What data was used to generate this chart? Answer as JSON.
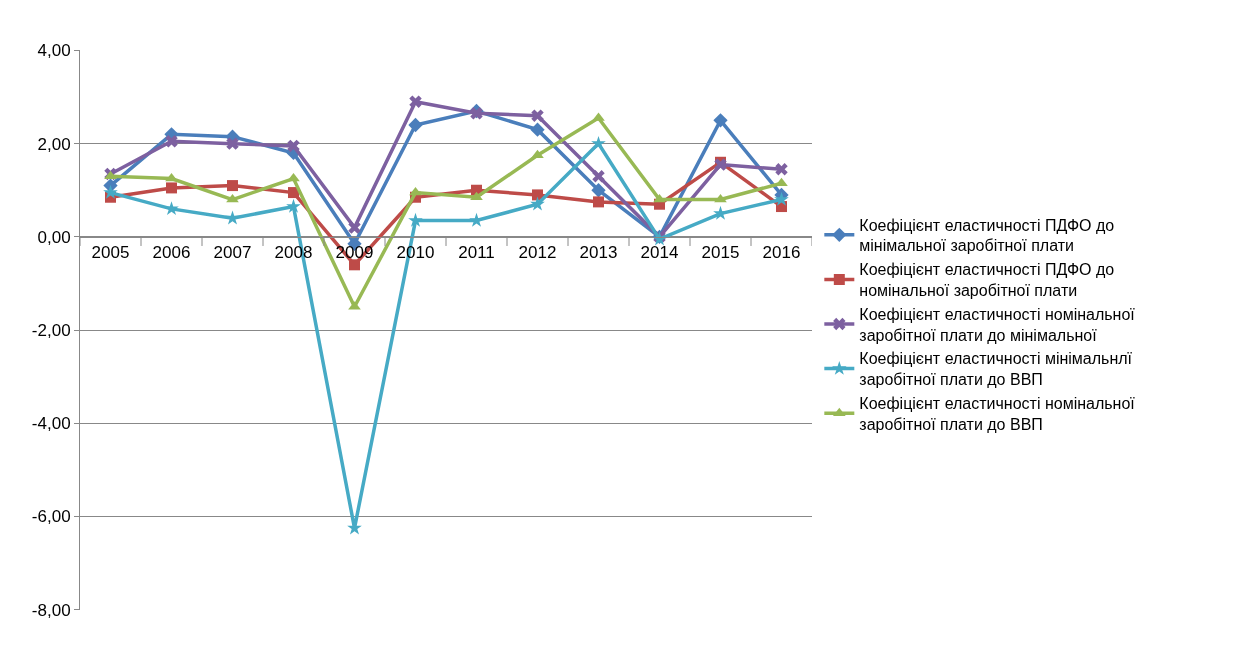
{
  "chart_data": {
    "type": "line",
    "categories": [
      "2005",
      "2006",
      "2007",
      "2008",
      "2009",
      "2010",
      "2011",
      "2012",
      "2013",
      "2014",
      "2015",
      "2016"
    ],
    "series": [
      {
        "name": "Коефіцієнт еластичності ПДФО до мінімальної заробітної плати",
        "color": "#4a7ebb",
        "marker": "diamond",
        "values": [
          1.1,
          2.2,
          2.15,
          1.8,
          -0.15,
          2.4,
          2.7,
          2.3,
          1.0,
          0.0,
          2.5,
          0.9
        ]
      },
      {
        "name": "Коефіцієнт еластичності ПДФО до номінальної заробітної плати",
        "color": "#be4b48",
        "marker": "square",
        "values": [
          0.85,
          1.05,
          1.1,
          0.95,
          -0.6,
          0.85,
          1.0,
          0.9,
          0.75,
          0.7,
          1.6,
          0.65
        ]
      },
      {
        "name": "Коефіцієнт еластичності номінальної заробітної плати до мінімальної",
        "color": "#7d60a0",
        "marker": "cross",
        "values": [
          1.35,
          2.05,
          2.0,
          1.95,
          0.2,
          2.9,
          2.65,
          2.6,
          1.3,
          0.0,
          1.55,
          1.45
        ]
      },
      {
        "name": "Коефіцієнт еластичності мінімальнлї заробітної плати до ВВП",
        "color": "#46aac5",
        "marker": "star",
        "values": [
          0.95,
          0.6,
          0.4,
          0.65,
          -6.25,
          0.35,
          0.35,
          0.7,
          2.0,
          -0.05,
          0.5,
          0.8
        ]
      },
      {
        "name": "Коефіцієнт еластичності номінальної заробітної плати до ВВП",
        "color": "#98b954",
        "marker": "triangle",
        "values": [
          1.3,
          1.25,
          0.8,
          1.25,
          -1.5,
          0.95,
          0.85,
          1.75,
          2.55,
          0.8,
          0.8,
          1.15
        ]
      }
    ],
    "ylim": [
      -8,
      4
    ],
    "yticks": [
      {
        "value": -8,
        "label": "-8,00"
      },
      {
        "value": -6,
        "label": "-6,00"
      },
      {
        "value": -4,
        "label": "-4,00"
      },
      {
        "value": -2,
        "label": "-2,00"
      },
      {
        "value": 0,
        "label": "0,00"
      },
      {
        "value": 2,
        "label": "2,00"
      },
      {
        "value": 4,
        "label": "4,00"
      }
    ],
    "grid": "y",
    "legend": "right",
    "line_style": "solid"
  }
}
